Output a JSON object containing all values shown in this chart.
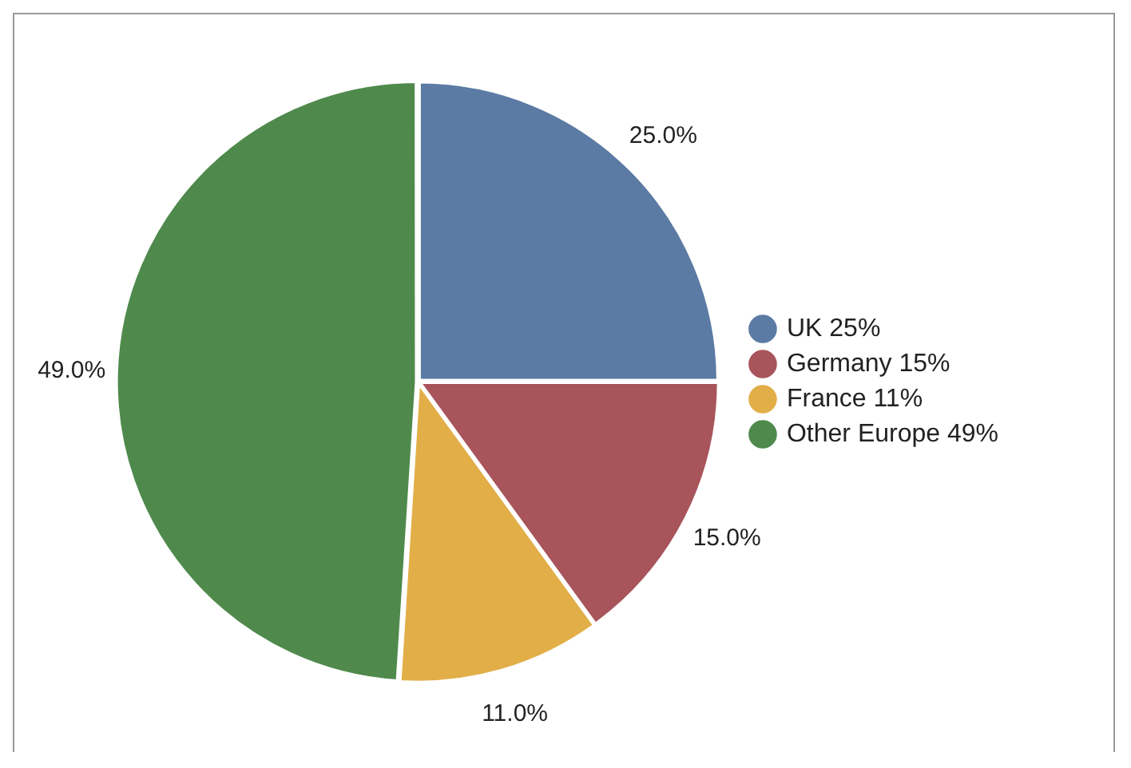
{
  "chart_data": {
    "type": "pie",
    "categories": [
      "UK 25%",
      "Germany 15%",
      "France 11%",
      "Other Europe 49%"
    ],
    "values": [
      25,
      15,
      11,
      49
    ],
    "colors": [
      "#5b7ba4",
      "#a8545b",
      "#e2ae48",
      "#4f8a4c"
    ],
    "value_labels": [
      "25.0%",
      "15.0%",
      "11.0%",
      "49.0%"
    ],
    "legend": "right"
  }
}
